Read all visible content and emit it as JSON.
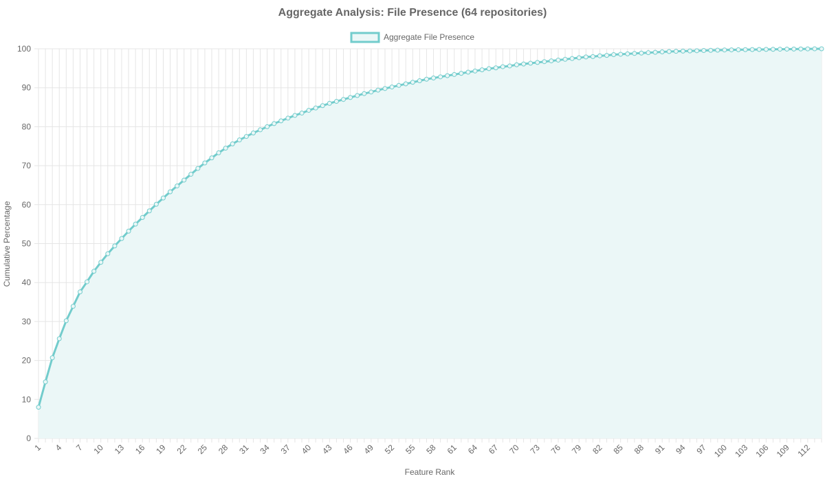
{
  "chart_data": {
    "type": "line",
    "title": "Aggregate Analysis: File Presence (64 repositories)",
    "legend_position": "top",
    "xlabel": "Feature Rank",
    "ylabel": "Cumulative Percentage",
    "ylim": [
      0,
      100
    ],
    "y_ticks": [
      "0",
      "10",
      "20",
      "30",
      "40",
      "50",
      "60",
      "70",
      "80",
      "90",
      "100"
    ],
    "x_tick_labels": [
      "1",
      "4",
      "7",
      "10",
      "13",
      "16",
      "19",
      "22",
      "25",
      "28",
      "31",
      "34",
      "37",
      "40",
      "43",
      "46",
      "49",
      "52",
      "55",
      "58",
      "61",
      "64",
      "67",
      "70",
      "73",
      "76",
      "79",
      "82",
      "85",
      "88",
      "91",
      "94",
      "97",
      "100",
      "103",
      "106",
      "109",
      "112"
    ],
    "grid": true,
    "fill": true,
    "colors": {
      "line": "#72cccc",
      "fill": "#ebf7f7",
      "point": "#72cccc"
    },
    "x": [
      1,
      2,
      3,
      4,
      5,
      6,
      7,
      8,
      9,
      10,
      11,
      12,
      13,
      14,
      15,
      16,
      17,
      18,
      19,
      20,
      21,
      22,
      23,
      24,
      25,
      26,
      27,
      28,
      29,
      30,
      31,
      32,
      33,
      34,
      35,
      36,
      37,
      38,
      39,
      40,
      41,
      42,
      43,
      44,
      45,
      46,
      47,
      48,
      49,
      50,
      51,
      52,
      53,
      54,
      55,
      56,
      57,
      58,
      59,
      60,
      61,
      62,
      63,
      64,
      65,
      66,
      67,
      68,
      69,
      70,
      71,
      72,
      73,
      74,
      75,
      76,
      77,
      78,
      79,
      80,
      81,
      82,
      83,
      84,
      85,
      86,
      87,
      88,
      89,
      90,
      91,
      92,
      93,
      94,
      95,
      96,
      97,
      98,
      99,
      100,
      101,
      102,
      103,
      104,
      105,
      106,
      107,
      108,
      109,
      110,
      111,
      112,
      113,
      114
    ],
    "series": [
      {
        "name": "Aggregate File Presence",
        "values": [
          8.0,
          14.5,
          20.7,
          25.6,
          30.2,
          33.9,
          37.6,
          40.2,
          42.9,
          45.2,
          47.4,
          49.4,
          51.3,
          53.2,
          55.0,
          56.7,
          58.4,
          60.1,
          61.7,
          63.3,
          64.8,
          66.3,
          67.8,
          69.3,
          70.7,
          72.0,
          73.3,
          74.5,
          75.6,
          76.6,
          77.5,
          78.4,
          79.2,
          80.0,
          80.8,
          81.5,
          82.2,
          82.9,
          83.5,
          84.2,
          84.8,
          85.4,
          86.0,
          86.5,
          87.0,
          87.5,
          88.0,
          88.5,
          88.9,
          89.4,
          89.8,
          90.2,
          90.6,
          91.0,
          91.4,
          91.8,
          92.2,
          92.5,
          92.8,
          93.1,
          93.4,
          93.7,
          94.0,
          94.3,
          94.6,
          94.9,
          95.1,
          95.4,
          95.6,
          95.9,
          96.1,
          96.3,
          96.5,
          96.7,
          96.9,
          97.1,
          97.3,
          97.5,
          97.7,
          97.9,
          98.0,
          98.2,
          98.3,
          98.5,
          98.6,
          98.7,
          98.8,
          98.9,
          99.0,
          99.1,
          99.2,
          99.3,
          99.35,
          99.4,
          99.45,
          99.5,
          99.55,
          99.6,
          99.65,
          99.7,
          99.72,
          99.75,
          99.78,
          99.8,
          99.83,
          99.85,
          99.87,
          99.9,
          99.92,
          99.94,
          99.96,
          99.97,
          99.99,
          100.0
        ]
      }
    ]
  }
}
